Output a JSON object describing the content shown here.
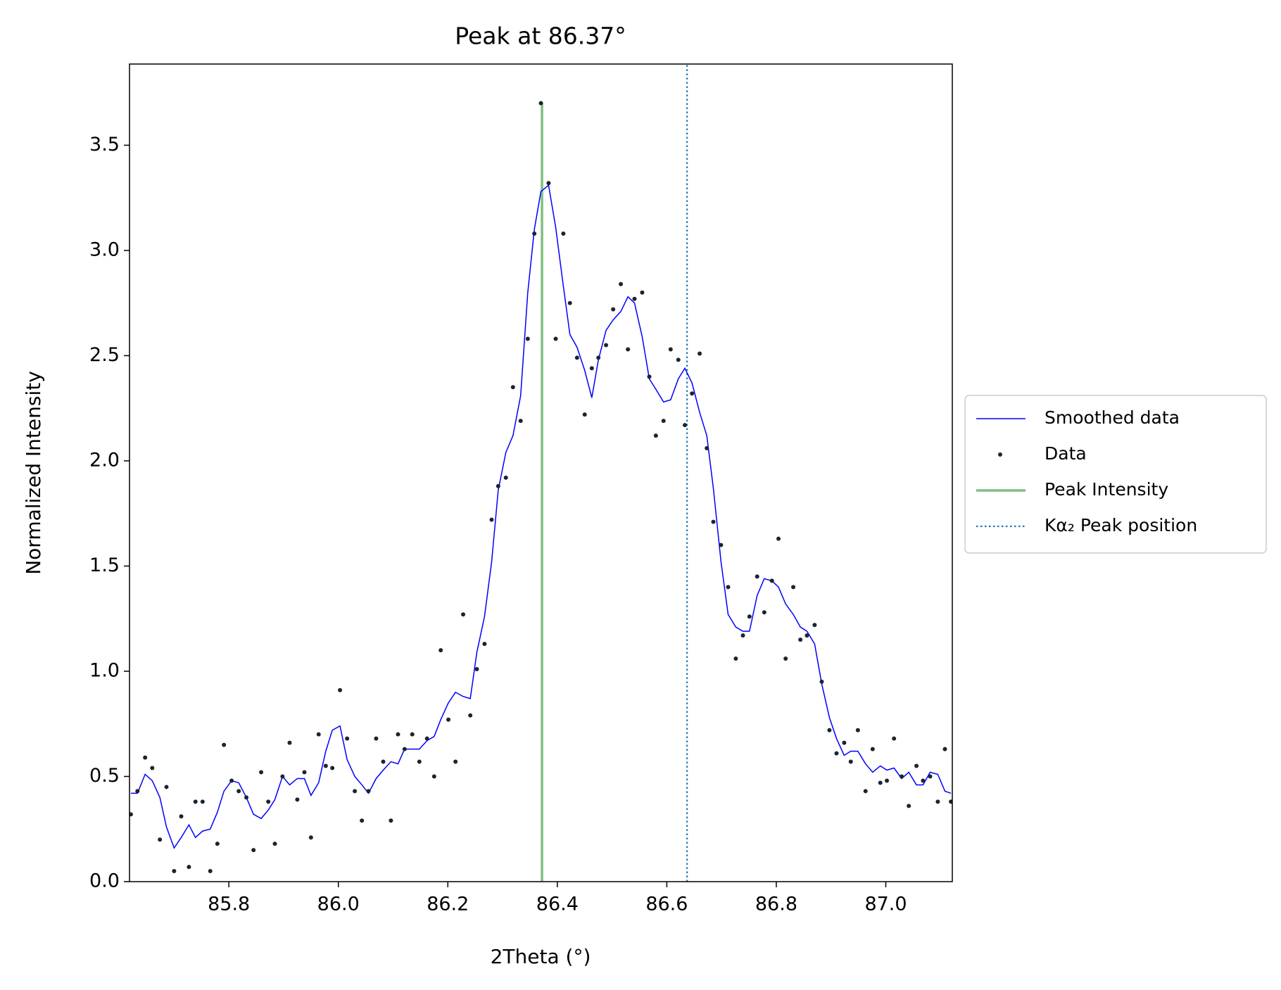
{
  "chart_data": {
    "type": "xrd_peak",
    "title": "Peak at 86.37°",
    "x_label": "2Theta (°)",
    "y_label": "Normalized Intensity",
    "xlim": [
      85.6185,
      87.1215
    ],
    "ylim": [
      0,
      3.886
    ],
    "xticks": [
      85.8,
      {
        "value": 86.0,
        "label": "86.0"
      },
      86.2,
      86.4,
      86.6,
      86.8,
      {
        "value": 87.0,
        "label": "87.0"
      }
    ],
    "yticks": [
      {
        "value": 0,
        "label": "0.0"
      },
      0.5,
      {
        "value": 1,
        "label": "1.0"
      },
      1.5,
      {
        "value": 2,
        "label": "2.0"
      },
      2.5,
      {
        "value": 3,
        "label": "3.0"
      },
      3.5
    ],
    "legend": "outside-right",
    "x": [
      85.621,
      85.633,
      85.647,
      85.66,
      85.674,
      85.686,
      85.7,
      85.713,
      85.727,
      85.739,
      85.752,
      85.766,
      85.779,
      85.791,
      85.805,
      85.818,
      85.832,
      85.845,
      85.859,
      85.872,
      85.884,
      85.898,
      85.911,
      85.925,
      85.938,
      85.95,
      85.964,
      85.977,
      85.989,
      86.003,
      86.016,
      86.03,
      86.043,
      86.055,
      86.069,
      86.082,
      86.096,
      86.109,
      86.121,
      86.135,
      86.148,
      86.162,
      86.175,
      86.187,
      86.201,
      86.214,
      86.228,
      86.241,
      86.253,
      86.267,
      86.28,
      86.292,
      86.306,
      86.319,
      86.333,
      86.346,
      86.358,
      86.37,
      86.384,
      86.397,
      86.411,
      86.423,
      86.436,
      86.45,
      86.463,
      86.475,
      86.489,
      86.502,
      86.516,
      86.529,
      86.541,
      86.555,
      86.568,
      86.58,
      86.594,
      86.607,
      86.621,
      86.633,
      86.646,
      86.66,
      86.673,
      86.685,
      86.699,
      86.712,
      86.726,
      86.739,
      86.751,
      86.765,
      86.778,
      86.792,
      86.804,
      86.817,
      86.831,
      86.844,
      86.856,
      86.87,
      86.883,
      86.897,
      86.91,
      86.924,
      86.936,
      86.949,
      86.963,
      86.976,
      86.99,
      87.002,
      87.015,
      87.029,
      87.042,
      87.056,
      87.068,
      87.081,
      87.095,
      87.108,
      87.119
    ],
    "series": [
      {
        "name": "Smoothed data",
        "kind": "line",
        "color": "#0000ff",
        "values": [
          0.42,
          0.42,
          0.51,
          0.48,
          0.4,
          0.26,
          0.16,
          0.21,
          0.27,
          0.21,
          0.24,
          0.25,
          0.33,
          0.43,
          0.48,
          0.47,
          0.4,
          0.32,
          0.3,
          0.34,
          0.39,
          0.5,
          0.46,
          0.49,
          0.49,
          0.41,
          0.47,
          0.62,
          0.72,
          0.74,
          0.58,
          0.5,
          0.46,
          0.42,
          0.49,
          0.53,
          0.57,
          0.56,
          0.63,
          0.63,
          0.63,
          0.67,
          0.69,
          0.77,
          0.85,
          0.9,
          0.88,
          0.87,
          1.09,
          1.26,
          1.52,
          1.86,
          2.04,
          2.12,
          2.31,
          2.8,
          3.1,
          3.28,
          3.31,
          3.11,
          2.83,
          2.6,
          2.54,
          2.43,
          2.3,
          2.48,
          2.62,
          2.67,
          2.71,
          2.78,
          2.75,
          2.59,
          2.39,
          2.34,
          2.28,
          2.29,
          2.39,
          2.44,
          2.37,
          2.23,
          2.12,
          1.87,
          1.52,
          1.27,
          1.21,
          1.19,
          1.19,
          1.36,
          1.44,
          1.43,
          1.4,
          1.32,
          1.27,
          1.21,
          1.19,
          1.13,
          0.94,
          0.78,
          0.68,
          0.6,
          0.62,
          0.62,
          0.56,
          0.52,
          0.55,
          0.53,
          0.54,
          0.49,
          0.52,
          0.46,
          0.46,
          0.52,
          0.51,
          0.43,
          0.42
        ]
      },
      {
        "name": "Data",
        "kind": "scatter",
        "color": "#1a2433",
        "values": [
          0.32,
          0.43,
          0.59,
          0.54,
          0.2,
          0.45,
          0.05,
          0.31,
          0.07,
          0.38,
          0.38,
          0.05,
          0.18,
          0.65,
          0.48,
          0.43,
          0.4,
          0.15,
          0.52,
          0.38,
          0.18,
          0.5,
          0.66,
          0.39,
          0.52,
          0.21,
          0.7,
          0.55,
          0.54,
          0.91,
          0.68,
          0.43,
          0.29,
          0.43,
          0.68,
          0.57,
          0.29,
          0.7,
          0.63,
          0.7,
          0.57,
          0.68,
          0.5,
          1.1,
          0.77,
          0.57,
          1.27,
          0.79,
          1.01,
          1.13,
          1.72,
          1.88,
          1.92,
          2.35,
          2.19,
          2.58,
          3.08,
          3.7,
          3.32,
          2.58,
          3.08,
          2.75,
          2.49,
          2.22,
          2.44,
          2.49,
          2.55,
          2.72,
          2.84,
          2.53,
          2.77,
          2.8,
          2.4,
          2.12,
          2.19,
          2.53,
          2.48,
          2.17,
          2.32,
          2.51,
          2.06,
          1.71,
          1.6,
          1.4,
          1.06,
          1.17,
          1.26,
          1.45,
          1.28,
          1.43,
          1.63,
          1.06,
          1.4,
          1.15,
          1.17,
          1.22,
          0.95,
          0.72,
          0.61,
          0.66,
          0.57,
          0.72,
          0.43,
          0.63,
          0.47,
          0.48,
          0.68,
          0.5,
          0.36,
          0.55,
          0.48,
          0.5,
          0.38,
          0.63,
          0.38
        ]
      },
      {
        "name": "Peak Intensity",
        "kind": "vline",
        "color": "#7fbf7f",
        "style": "solid",
        "x": 86.372,
        "top": 3.7
      },
      {
        "name": "Kα₂ Peak position",
        "kind": "vline",
        "color": "#1f77b4",
        "style": "dotted",
        "x": 86.637
      }
    ]
  }
}
